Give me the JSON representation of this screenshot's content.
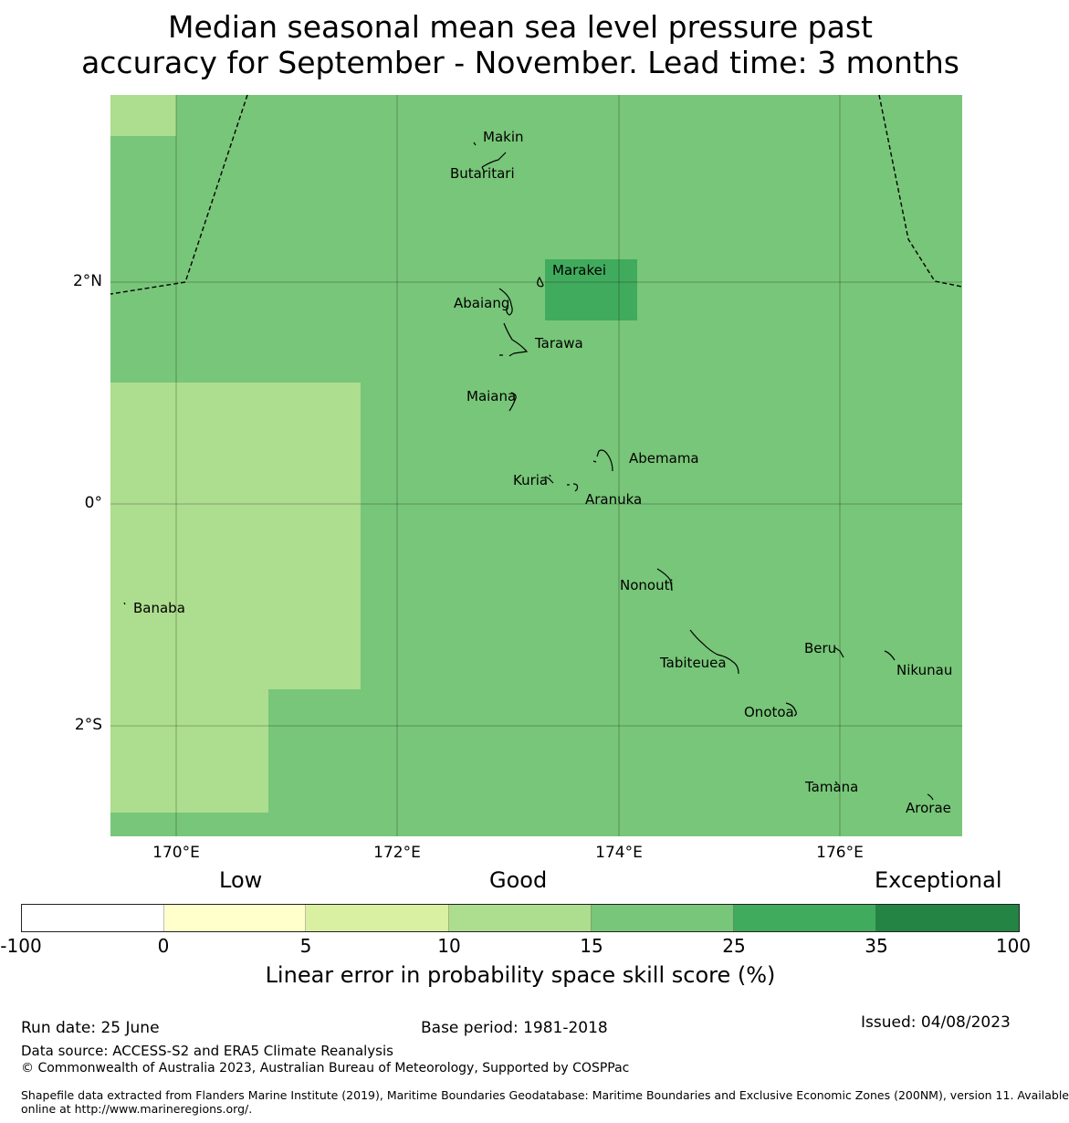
{
  "title_line1": "Median seasonal mean sea level pressure past",
  "title_line2": "accuracy for September - November. Lead time: 3 months",
  "map": {
    "lon_ticks": [
      "170°E",
      "172°E",
      "174°E",
      "176°E"
    ],
    "lat_ticks": [
      "2°N",
      "0°",
      "2°S"
    ],
    "colors": {
      "base_cell": "#78c679",
      "low_cell": "#addd8e",
      "high_cell": "#41ab5d"
    },
    "islands": [
      {
        "name": "Makin",
        "icon": "island-icon"
      },
      {
        "name": "Butaritari",
        "icon": "island-icon"
      },
      {
        "name": "Marakei",
        "icon": "island-icon"
      },
      {
        "name": "Abaiang",
        "icon": "island-icon"
      },
      {
        "name": "Tarawa",
        "icon": "island-icon"
      },
      {
        "name": "Maiana",
        "icon": "island-icon"
      },
      {
        "name": "Abemama",
        "icon": "island-icon"
      },
      {
        "name": "Kuria",
        "icon": "island-icon"
      },
      {
        "name": "Aranuka",
        "icon": "island-icon"
      },
      {
        "name": "Nonouti",
        "icon": "island-icon"
      },
      {
        "name": "Banaba",
        "icon": "island-icon"
      },
      {
        "name": "Beru",
        "icon": "island-icon"
      },
      {
        "name": "Tabiteuea",
        "icon": "island-icon"
      },
      {
        "name": "Nikunau",
        "icon": "island-icon"
      },
      {
        "name": "Onotoa",
        "icon": "island-icon"
      },
      {
        "name": "Tamana",
        "icon": "island-icon"
      },
      {
        "name": "Arorae",
        "icon": "island-icon"
      }
    ]
  },
  "colorbar": {
    "categories": [
      "Low",
      "Good",
      "Exceptional"
    ],
    "ticks": [
      "-100",
      "0",
      "5",
      "10",
      "15",
      "25",
      "35",
      "100"
    ],
    "segment_colors": [
      "#ffffff",
      "#ffffcc",
      "#d9f0a3",
      "#addd8e",
      "#78c679",
      "#41ab5d",
      "#238443"
    ],
    "label": "Linear error in probability space skill score (%)"
  },
  "footer": {
    "run_date": "Run date: 25 June",
    "base_period": "Base period: 1981-2018",
    "issued": "Issued: 04/08/2023",
    "data_source": "Data source: ACCESS-S2 and ERA5 Climate Reanalysis",
    "copyright": "© Commonwealth of Australia 2023, Australian Bureau of Meteorology, Supported by COSPPac",
    "shapefile_line1": "Shapefile data extracted from Flanders Marine Institute (2019), Maritime Boundaries Geodatabase: Maritime Boundaries and Exclusive Economic Zones (200NM), version 11. Available",
    "shapefile_line2": "online at http://www.marineregions.org/."
  }
}
